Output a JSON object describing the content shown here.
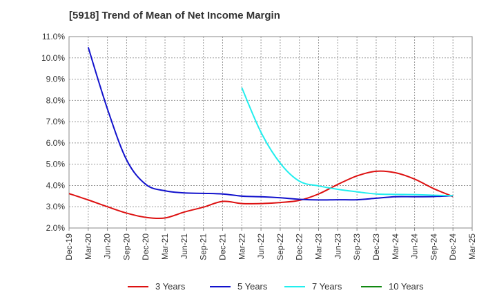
{
  "chart_data": {
    "type": "line",
    "title": "[5918]  Trend of Mean of Net Income Margin",
    "xlabel": "",
    "ylabel": "",
    "ylim": [
      2.0,
      11.0
    ],
    "y_ticks": [
      "2.0%",
      "3.0%",
      "4.0%",
      "5.0%",
      "6.0%",
      "7.0%",
      "8.0%",
      "9.0%",
      "10.0%",
      "11.0%"
    ],
    "x_ticks": [
      "Dec-19",
      "Mar-20",
      "Jun-20",
      "Sep-20",
      "Dec-20",
      "Mar-21",
      "Jun-21",
      "Sep-21",
      "Dec-21",
      "Mar-22",
      "Jun-22",
      "Sep-22",
      "Dec-22",
      "Mar-23",
      "Jun-23",
      "Sep-23",
      "Dec-23",
      "Mar-24",
      "Jun-24",
      "Sep-24",
      "Dec-24",
      "Mar-25"
    ],
    "grid": true,
    "legend_position": "bottom",
    "series": [
      {
        "name": "3 Years",
        "color": "#dd1111",
        "x": [
          "Dec-19",
          "Mar-20",
          "Jun-20",
          "Sep-20",
          "Dec-20",
          "Mar-21",
          "Jun-21",
          "Sep-21",
          "Dec-21",
          "Mar-22",
          "Jun-22",
          "Sep-22",
          "Dec-22",
          "Mar-23",
          "Jun-23",
          "Sep-23",
          "Dec-23",
          "Mar-24",
          "Jun-24",
          "Sep-24",
          "Dec-24"
        ],
        "values": [
          3.62,
          3.32,
          3.0,
          2.7,
          2.5,
          2.47,
          2.75,
          2.98,
          3.25,
          3.15,
          3.15,
          3.2,
          3.3,
          3.6,
          4.05,
          4.45,
          4.67,
          4.6,
          4.3,
          3.85,
          3.48
        ]
      },
      {
        "name": "5 Years",
        "color": "#1111cc",
        "x": [
          "Mar-20",
          "Jun-20",
          "Sep-20",
          "Dec-20",
          "Mar-21",
          "Jun-21",
          "Sep-21",
          "Dec-21",
          "Mar-22",
          "Jun-22",
          "Sep-22",
          "Dec-22",
          "Mar-23",
          "Jun-23",
          "Sep-23",
          "Dec-23",
          "Mar-24",
          "Jun-24",
          "Sep-24",
          "Dec-24"
        ],
        "values": [
          10.5,
          7.6,
          5.2,
          4.05,
          3.75,
          3.65,
          3.63,
          3.6,
          3.5,
          3.47,
          3.42,
          3.35,
          3.32,
          3.33,
          3.33,
          3.4,
          3.47,
          3.47,
          3.48,
          3.52
        ]
      },
      {
        "name": "7 Years",
        "color": "#22eeee",
        "x": [
          "Mar-22",
          "Jun-22",
          "Sep-22",
          "Dec-22",
          "Mar-23",
          "Jun-23",
          "Sep-23",
          "Dec-23",
          "Mar-24",
          "Jun-24",
          "Sep-24",
          "Dec-24"
        ],
        "values": [
          8.6,
          6.5,
          5.05,
          4.2,
          3.98,
          3.82,
          3.7,
          3.6,
          3.58,
          3.57,
          3.54,
          3.52
        ]
      },
      {
        "name": "10 Years",
        "color": "#118811",
        "x": [],
        "values": []
      }
    ]
  }
}
